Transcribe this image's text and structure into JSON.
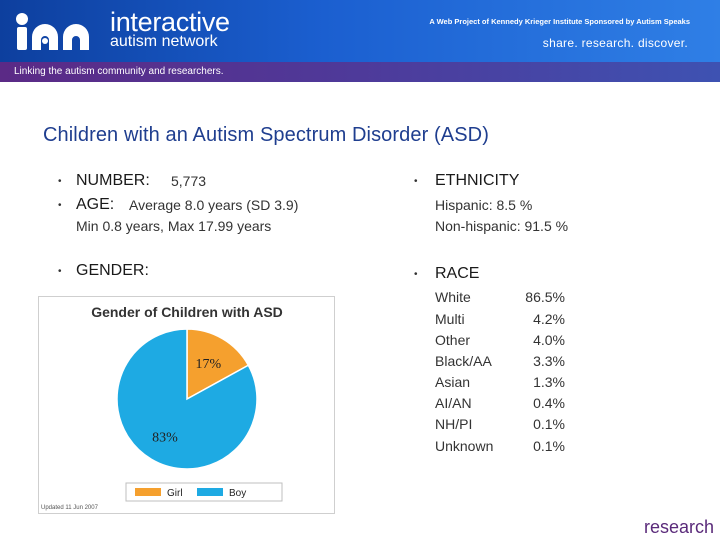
{
  "header": {
    "logo_word1": "interactive",
    "logo_word2": "autism network",
    "credit": "A Web Project of Kennedy Krieger Institute  Sponsored by Autism Speaks",
    "slogan": "share. research. discover.",
    "tagline": "Linking the autism community and researchers."
  },
  "title": "Children with an Autism Spectrum Disorder (ASD)",
  "bullet_glyph": "•",
  "left": {
    "number_label": "NUMBER:",
    "number_value": "5,773",
    "age_label": "AGE:",
    "age_value": "Average 8.0 years (SD 3.9)",
    "age_range": "Min 0.8 years, Max 17.99 years",
    "gender_label": "GENDER:"
  },
  "right": {
    "ethnicity_label": "ETHNICITY",
    "hispanic": "Hispanic: 8.5 %",
    "non_hispanic": "Non-hispanic: 91.5 %",
    "race_label": "RACE",
    "race": [
      {
        "name": "White",
        "value": "86.5%"
      },
      {
        "name": "Multi",
        "value": "4.2%"
      },
      {
        "name": "Other",
        "value": "4.0%"
      },
      {
        "name": "Black/AA",
        "value": "3.3%"
      },
      {
        "name": "Asian",
        "value": "1.3%"
      },
      {
        "name": "AI/AN",
        "value": "0.4%"
      },
      {
        "name": "NH/PI",
        "value": "0.1%"
      },
      {
        "name": "Unknown",
        "value": "0.1%"
      }
    ]
  },
  "chart_data": {
    "type": "pie",
    "title": "Gender of Children with ASD",
    "slices": [
      {
        "label": "Girl",
        "value": 17,
        "display": "17%",
        "color": "#f5a02e"
      },
      {
        "label": "Boy",
        "value": 83,
        "display": "83%",
        "color": "#1eaae3"
      }
    ],
    "legend_placement": "bottom",
    "footnote": "Updated 11 Jun 2007"
  },
  "footer": {
    "word": "research"
  },
  "colors": {
    "title": "#1f3e8f",
    "banner": "#1b5fd0",
    "strip": "#5b2a86"
  }
}
